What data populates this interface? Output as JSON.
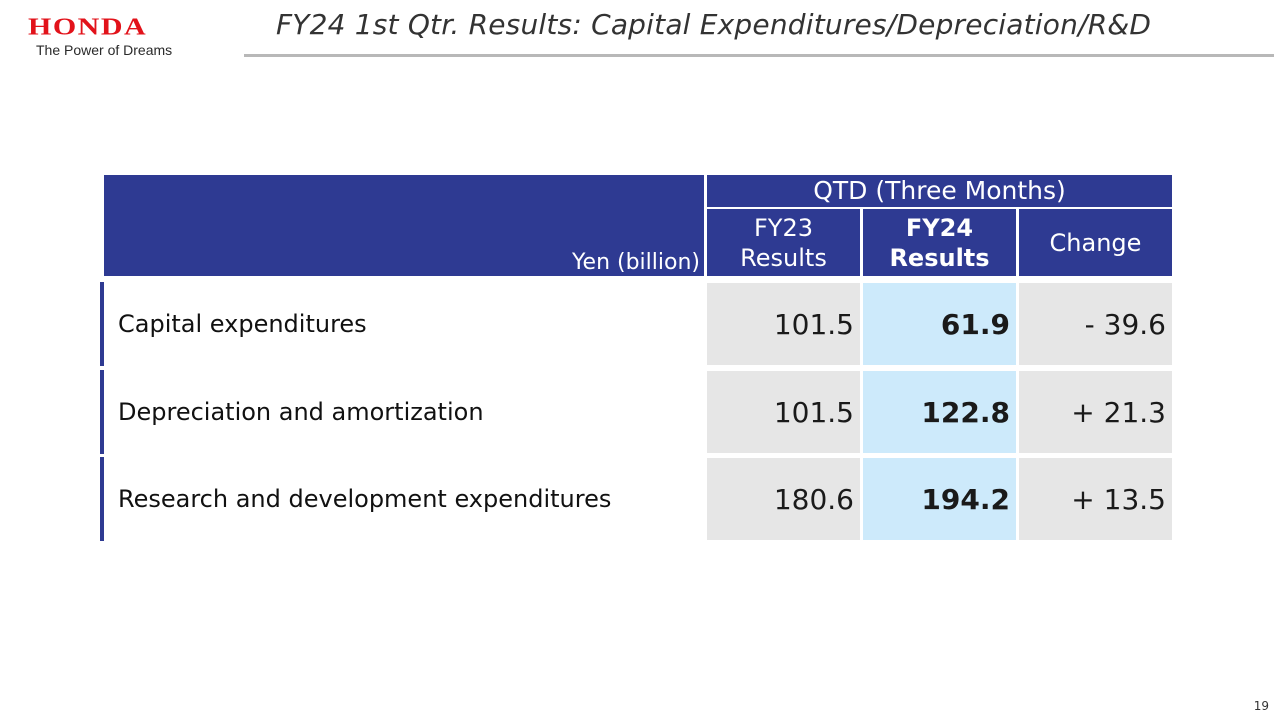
{
  "header": {
    "brand": "HONDA",
    "tagline": "The Power of Dreams",
    "title": "FY24 1st Qtr. Results: Capital Expenditures/Depreciation/R&D"
  },
  "table": {
    "unit_label": "Yen (billion)",
    "group_label": "QTD (Three Months)",
    "columns": [
      {
        "line1": "FY23",
        "line2": "Results"
      },
      {
        "line1": "FY24",
        "line2": "Results"
      },
      {
        "line1": "Change",
        "line2": ""
      }
    ],
    "rows": [
      {
        "label": "Capital expenditures",
        "fy23": "101.5",
        "fy24": "61.9",
        "change": "- 39.6"
      },
      {
        "label": "Depreciation and amortization",
        "fy23": "101.5",
        "fy24": "122.8",
        "change": "+ 21.3"
      },
      {
        "label": "Research and development expenditures",
        "fy23": "180.6",
        "fy24": "194.2",
        "change": "+ 13.5"
      }
    ]
  },
  "footer": {
    "page_number": "19"
  },
  "colors": {
    "brand_red": "#e2121a",
    "header_blue": "#2e3a92",
    "highlight_cell": "#cdeafb",
    "neutral_cell": "#e6e6e6"
  }
}
